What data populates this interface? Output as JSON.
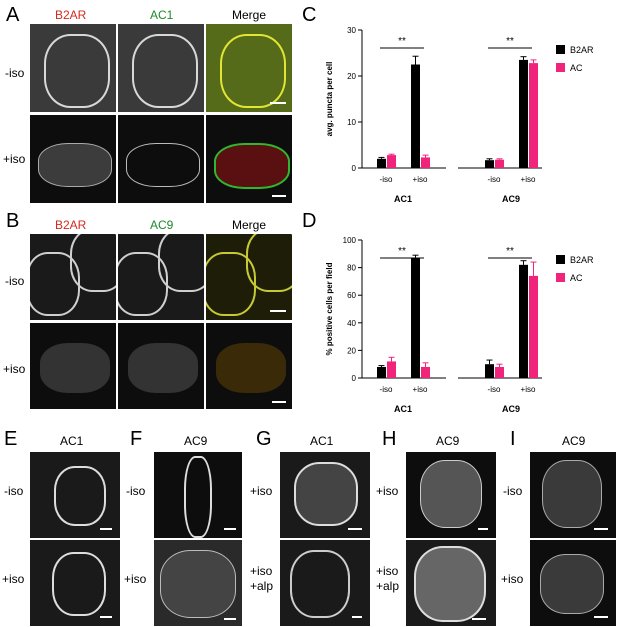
{
  "letters": {
    "A": "A",
    "B": "B",
    "C": "C",
    "D": "D",
    "E": "E",
    "F": "F",
    "G": "G",
    "H": "H",
    "I": "I"
  },
  "panelA": {
    "col1": "B2AR",
    "col2": "AC1",
    "col3": "Merge",
    "row1": "-iso",
    "row2": "+iso"
  },
  "panelB": {
    "col1": "B2AR",
    "col2": "AC9",
    "col3": "Merge",
    "row1": "-iso",
    "row2": "+iso"
  },
  "colors": {
    "red_label": "#d42a1e",
    "green_label": "#1e8a2a",
    "b2ar": "#000000",
    "ac": "#f0247a"
  },
  "bottom": {
    "E": {
      "title": "AC1",
      "row1": "-iso",
      "row2": "+iso"
    },
    "F": {
      "title": "AC9",
      "row1": "-iso",
      "row2": "+iso"
    },
    "G": {
      "title": "AC1",
      "row1": "+iso",
      "row2a": "+iso",
      "row2b": "+alp"
    },
    "H": {
      "title": "AC9",
      "row1": "+iso",
      "row2a": "+iso",
      "row2b": "+alp"
    },
    "I": {
      "title": "AC9",
      "row1": "-iso",
      "row2": "+iso"
    }
  },
  "chart_data": [
    {
      "type": "bar",
      "ylabel": "avg. puncta per cell",
      "ylim": [
        0,
        30
      ],
      "yticks": [
        0,
        10,
        20,
        30
      ],
      "groups": [
        "AC1",
        "AC9"
      ],
      "conditions": [
        "-iso",
        "+iso",
        "-iso",
        "+iso"
      ],
      "series": [
        {
          "name": "B2AR",
          "values": [
            2,
            22.5,
            1.7,
            23.5
          ],
          "errors": [
            0.3,
            1.8,
            0.3,
            0.7
          ]
        },
        {
          "name": "AC",
          "values": [
            2.8,
            2.3,
            1.8,
            22.8
          ],
          "errors": [
            0.2,
            0.5,
            0.2,
            0.7
          ]
        }
      ],
      "significance": [
        "**",
        "**"
      ]
    },
    {
      "type": "bar",
      "ylabel": "% positive cells per field",
      "ylim": [
        0,
        100
      ],
      "yticks": [
        0,
        20,
        40,
        60,
        80,
        100
      ],
      "groups": [
        "AC1",
        "AC9"
      ],
      "conditions": [
        "-iso",
        "+iso",
        "-iso",
        "+iso"
      ],
      "series": [
        {
          "name": "B2AR",
          "values": [
            8,
            87,
            10,
            82
          ],
          "errors": [
            1,
            2,
            3,
            3
          ]
        },
        {
          "name": "AC",
          "values": [
            12,
            8,
            8,
            74
          ],
          "errors": [
            3,
            3,
            2,
            10
          ]
        }
      ],
      "significance": [
        "**",
        "**"
      ]
    }
  ]
}
